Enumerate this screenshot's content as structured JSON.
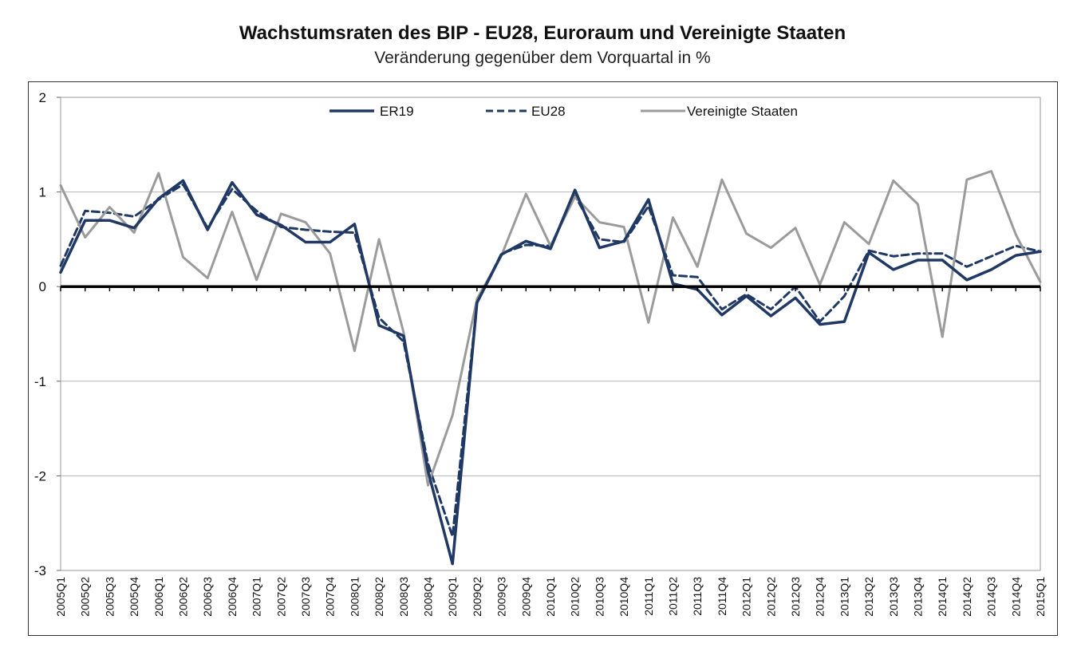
{
  "chart_data": {
    "type": "line",
    "title": "Wachstumsraten des BIP - EU28, Euroraum und Vereinigte Staaten",
    "subtitle": "Veränderung gegenüber dem Vorquartal in %",
    "ylim": [
      -3,
      2
    ],
    "yticks": [
      "2",
      "1",
      "0",
      "-1",
      "-2",
      "-3"
    ],
    "ytick_values": [
      2,
      1,
      0,
      -1,
      -2,
      -3
    ],
    "grid": true,
    "legend_position": "top-center",
    "categories": [
      "2005Q1",
      "2005Q2",
      "2005Q3",
      "2005Q4",
      "2006Q1",
      "2006Q2",
      "2006Q3",
      "2006Q4",
      "2007Q1",
      "2007Q2",
      "2007Q3",
      "2007Q4",
      "2008Q1",
      "2008Q2",
      "2008Q3",
      "2008Q4",
      "2009Q1",
      "2009Q2",
      "2009Q3",
      "2009Q4",
      "2010Q1",
      "2010Q2",
      "2010Q3",
      "2010Q4",
      "2011Q1",
      "2011Q2",
      "2011Q3",
      "2011Q4",
      "2012Q1",
      "2012Q2",
      "2012Q3",
      "2012Q4",
      "2013Q1",
      "2013Q2",
      "2013Q3",
      "2013Q4",
      "2014Q1",
      "2014Q2",
      "2014Q3",
      "2014Q4",
      "2015Q1"
    ],
    "series": [
      {
        "name": "ER19",
        "color": "#1f3864",
        "style": "solid",
        "values": [
          0.15,
          0.7,
          0.7,
          0.62,
          0.93,
          1.12,
          0.6,
          1.1,
          0.76,
          0.65,
          0.47,
          0.47,
          0.66,
          -0.41,
          -0.52,
          -1.95,
          -2.93,
          -0.17,
          0.34,
          0.48,
          0.4,
          1.02,
          0.41,
          0.48,
          0.92,
          0.03,
          -0.03,
          -0.3,
          -0.1,
          -0.31,
          -0.12,
          -0.4,
          -0.37,
          0.36,
          0.18,
          0.28,
          0.28,
          0.07,
          0.18,
          0.33,
          0.37
        ]
      },
      {
        "name": "EU28",
        "color": "#1f3864",
        "style": "dashed",
        "values": [
          0.22,
          0.8,
          0.78,
          0.74,
          0.92,
          1.08,
          0.62,
          1.03,
          0.8,
          0.63,
          0.6,
          0.58,
          0.57,
          -0.33,
          -0.58,
          -1.87,
          -2.64,
          -0.17,
          0.35,
          0.44,
          0.43,
          0.96,
          0.5,
          0.47,
          0.85,
          0.12,
          0.1,
          -0.24,
          -0.08,
          -0.24,
          0.0,
          -0.37,
          -0.1,
          0.38,
          0.32,
          0.35,
          0.35,
          0.21,
          0.32,
          0.43,
          0.37
        ]
      },
      {
        "name": "Vereinigte Staaten",
        "color": "#9b9b9b",
        "style": "solid",
        "values": [
          1.07,
          0.52,
          0.84,
          0.57,
          1.2,
          0.31,
          0.09,
          0.79,
          0.07,
          0.77,
          0.68,
          0.35,
          -0.68,
          0.5,
          -0.48,
          -2.1,
          -1.36,
          -0.13,
          0.33,
          0.98,
          0.43,
          0.95,
          0.68,
          0.63,
          -0.38,
          0.73,
          0.21,
          1.13,
          0.56,
          0.41,
          0.62,
          0.02,
          0.68,
          0.45,
          1.12,
          0.87,
          -0.53,
          1.13,
          1.22,
          0.55,
          0.05
        ]
      }
    ]
  }
}
